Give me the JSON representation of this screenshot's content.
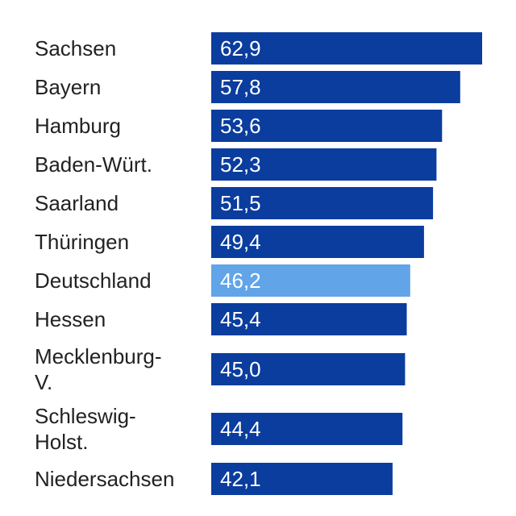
{
  "chart_data": {
    "type": "bar",
    "orientation": "horizontal",
    "categories": [
      "Sachsen",
      "Bayern",
      "Hamburg",
      "Baden-Würt.",
      "Saarland",
      "Thüringen",
      "Deutschland",
      "Hessen",
      "Mecklenburg-V.",
      "Schleswig-Holst.",
      "Niedersachsen"
    ],
    "category_lines": [
      [
        "Sachsen"
      ],
      [
        "Bayern"
      ],
      [
        "Hamburg"
      ],
      [
        "Baden-Würt."
      ],
      [
        "Saarland"
      ],
      [
        "Thüringen"
      ],
      [
        "Deutschland"
      ],
      [
        "Hessen"
      ],
      [
        "Mecklenburg-",
        "V."
      ],
      [
        "Schleswig-",
        "Holst."
      ],
      [
        "Niedersachsen"
      ]
    ],
    "values": [
      62.9,
      57.8,
      53.6,
      52.3,
      51.5,
      49.4,
      46.2,
      45.4,
      45.0,
      44.4,
      42.1
    ],
    "value_labels": [
      "62,9",
      "57,8",
      "53,6",
      "52,3",
      "51,5",
      "49,4",
      "46,2",
      "45,4",
      "45,0",
      "44,4",
      "42,1"
    ],
    "highlight_index": 6,
    "colors": {
      "bar": "#0a3d9e",
      "highlight": "#62a4e8",
      "label_text": "#222222",
      "value_text": "#ffffff"
    },
    "xlim": [
      0,
      62.9
    ],
    "grid": false,
    "legend": "none",
    "title": "",
    "xlabel": "",
    "ylabel": ""
  }
}
